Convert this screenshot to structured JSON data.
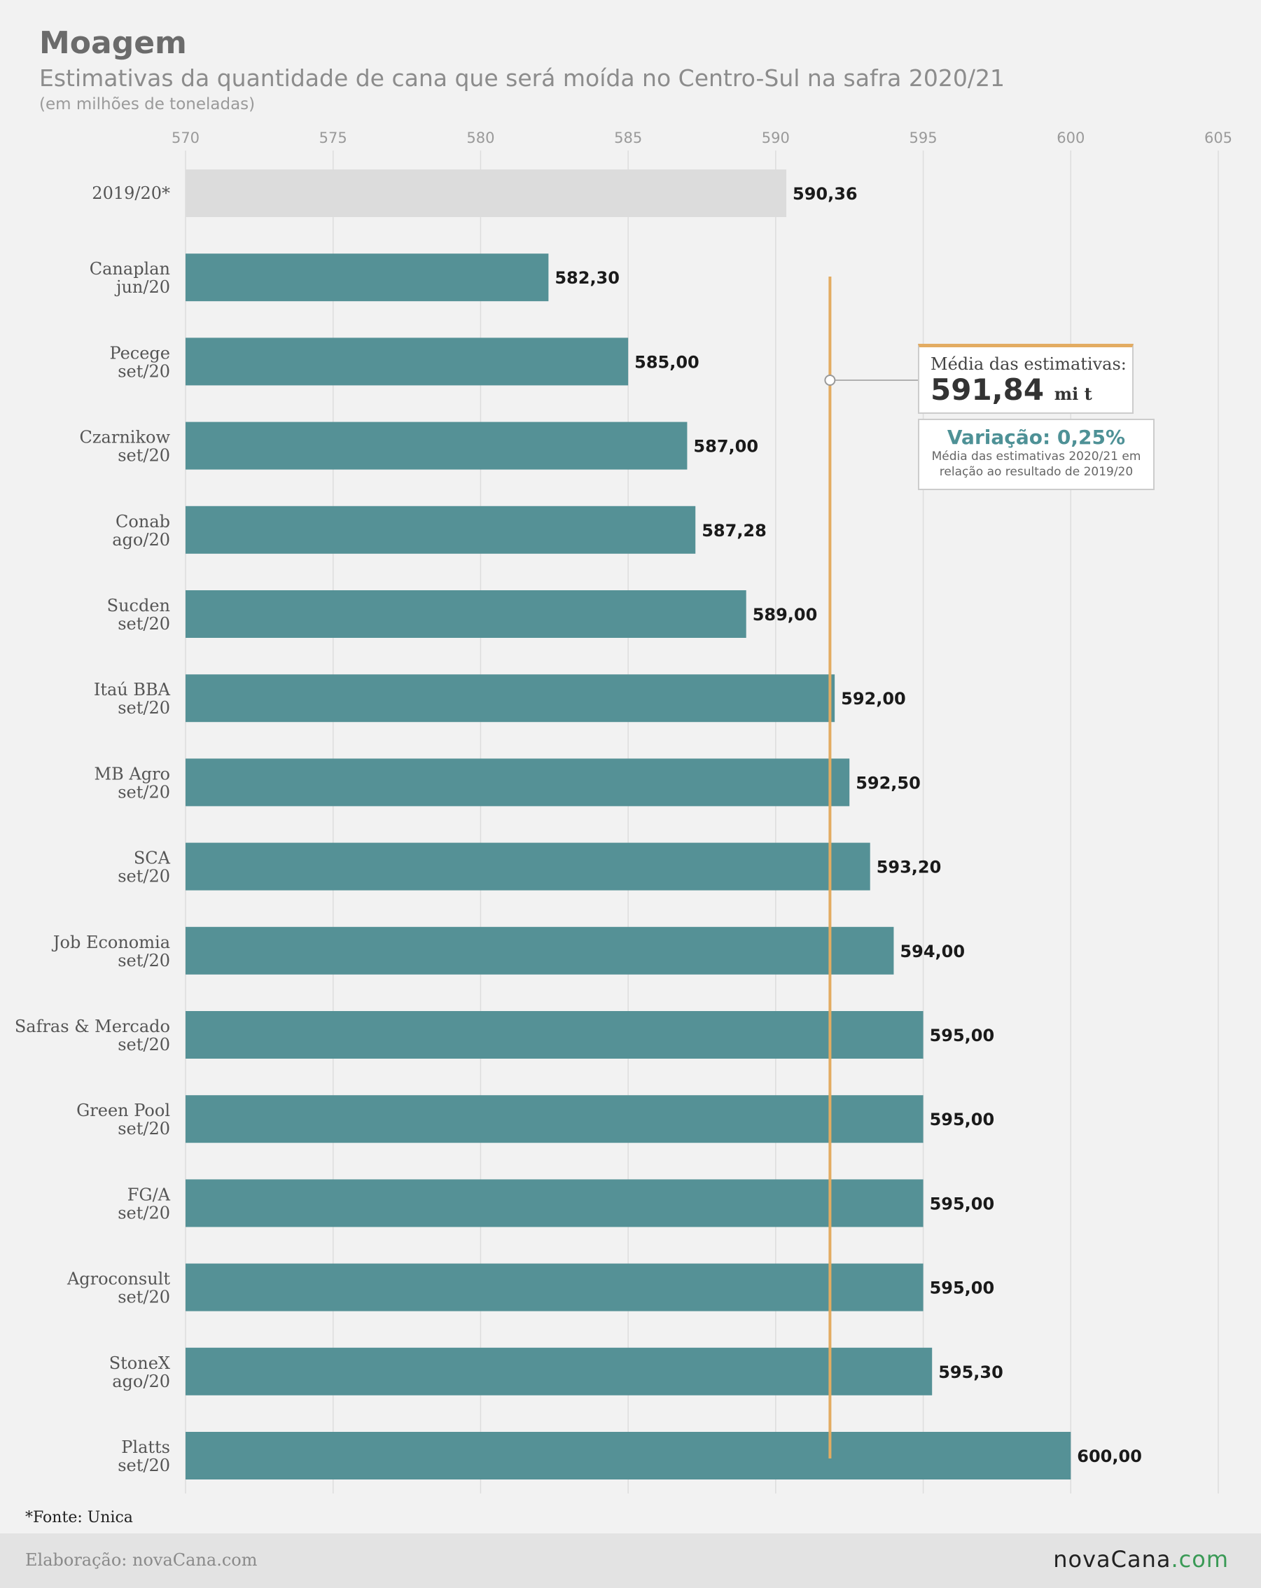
{
  "header": {
    "title": "Moagem",
    "subtitle": "Estimativas da quantidade de cana que será moída no Centro-Sul na safra 2020/21",
    "unit_note": "(em milhões de toneladas)"
  },
  "chart_data": {
    "type": "bar",
    "orientation": "horizontal",
    "xlim": [
      570,
      605
    ],
    "ticks": [
      570,
      575,
      580,
      585,
      590,
      595,
      600,
      605
    ],
    "grid": true,
    "categories": [
      [
        "2019/20*"
      ],
      [
        "Canaplan",
        "jun/20"
      ],
      [
        "Pecege",
        "set/20"
      ],
      [
        "Czarnikow",
        "set/20"
      ],
      [
        "Conab",
        "ago/20"
      ],
      [
        "Sucden",
        "set/20"
      ],
      [
        "Itaú BBA",
        "set/20"
      ],
      [
        "MB Agro",
        "set/20"
      ],
      [
        "SCA",
        "set/20"
      ],
      [
        "Job Economia",
        "set/20"
      ],
      [
        "Safras & Mercado",
        "set/20"
      ],
      [
        "Green Pool",
        "set/20"
      ],
      [
        "FG/A",
        "set/20"
      ],
      [
        "Agroconsult",
        "set/20"
      ],
      [
        "StoneX",
        "ago/20"
      ],
      [
        "Platts",
        "set/20"
      ]
    ],
    "values": [
      590.36,
      582.3,
      585.0,
      587.0,
      587.28,
      589.0,
      592.0,
      592.5,
      593.2,
      594.0,
      595.0,
      595.0,
      595.0,
      595.0,
      595.3,
      600.0
    ],
    "value_labels": [
      "590,36",
      "582,30",
      "585,00",
      "587,00",
      "587,28",
      "589,00",
      "592,00",
      "592,50",
      "593,20",
      "594,00",
      "595,00",
      "595,00",
      "595,00",
      "595,00",
      "595,30",
      "600,00"
    ],
    "reference_line": {
      "value": 591.84
    },
    "colors": {
      "bar": "#559196",
      "bar_reference_year": "#dcdcdc",
      "reference_line": "#e3ac62",
      "grid": "#dddddd"
    }
  },
  "average_callout": {
    "label": "Média das estimativas:",
    "value": "591,84",
    "unit": "mi t"
  },
  "variation_callout": {
    "title": "Variação: 0,25%",
    "description": "Média das estimativas 2020/21 em relação ao resultado de 2019/20"
  },
  "source_note": "*Fonte: Unica",
  "footer": {
    "credit": "Elaboração: novaCana.com",
    "logo_main": "novaCana",
    "logo_domain": ".com"
  }
}
